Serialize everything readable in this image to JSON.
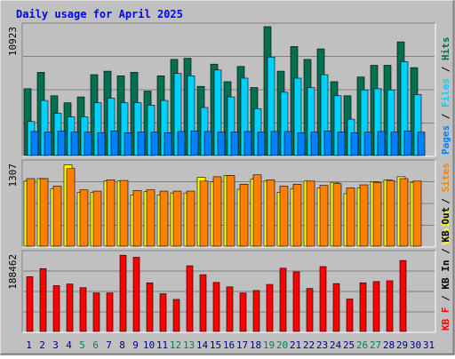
{
  "chart_data": [
    {
      "type": "bar",
      "title": "Daily usage for April 2025",
      "categories": [
        "1",
        "2",
        "3",
        "4",
        "5",
        "6",
        "7",
        "8",
        "9",
        "10",
        "11",
        "12",
        "13",
        "14",
        "15",
        "16",
        "17",
        "18",
        "19",
        "20",
        "21",
        "22",
        "23",
        "24",
        "25",
        "26",
        "27",
        "28",
        "29",
        "30",
        "31"
      ],
      "weekend_days": [
        "5",
        "6",
        "12",
        "13",
        "19",
        "20",
        "26",
        "27"
      ],
      "ylabel_max": "10923",
      "ymax": 10923,
      "legend": [
        "Pages",
        "Files",
        "Hits"
      ],
      "series": [
        {
          "name": "Hits",
          "values": [
            5700,
            7100,
            5100,
            4500,
            5000,
            6900,
            7200,
            6800,
            7100,
            5500,
            6800,
            8200,
            8300,
            5900,
            7800,
            6300,
            7600,
            5800,
            11000,
            7200,
            9300,
            8200,
            9100,
            6300,
            5100,
            6700,
            7700,
            7700,
            9700,
            7500,
            null
          ]
        },
        {
          "name": "Files",
          "values": [
            2900,
            4700,
            3600,
            3300,
            3300,
            4500,
            4900,
            4500,
            4500,
            4300,
            4700,
            7000,
            6800,
            4100,
            7300,
            5000,
            6600,
            4000,
            8400,
            5400,
            6600,
            5800,
            6900,
            5100,
            3100,
            5600,
            5700,
            5600,
            8000,
            5200,
            null
          ]
        },
        {
          "name": "Pages",
          "values": [
            2050,
            2000,
            2100,
            2000,
            2000,
            1950,
            2100,
            1950,
            2000,
            2000,
            1950,
            2050,
            2100,
            2050,
            2000,
            2000,
            2050,
            2000,
            2050,
            2050,
            1950,
            2000,
            2100,
            2000,
            1950,
            2000,
            2050,
            2000,
            2100,
            2000,
            null
          ]
        }
      ],
      "colors": {
        "Hits": "#007050",
        "Files": "#00D0FF",
        "Pages": "#0080FF"
      }
    },
    {
      "type": "bar",
      "categories": [
        "1",
        "2",
        "3",
        "4",
        "5",
        "6",
        "7",
        "8",
        "9",
        "10",
        "11",
        "12",
        "13",
        "14",
        "15",
        "16",
        "17",
        "18",
        "19",
        "20",
        "21",
        "22",
        "23",
        "24",
        "25",
        "26",
        "27",
        "28",
        "29",
        "30",
        "31"
      ],
      "ylabel_max": "1307",
      "ymax": 1307,
      "legend": [
        "Visits",
        "Sites"
      ],
      "series": [
        {
          "name": "Visits",
          "values": [
            1040,
            1080,
            920,
            1300,
            860,
            860,
            1040,
            1040,
            820,
            870,
            820,
            850,
            850,
            1100,
            1030,
            1130,
            910,
            1070,
            1040,
            860,
            920,
            1040,
            930,
            1020,
            840,
            930,
            1030,
            1060,
            1110,
            1020,
            null
          ]
        },
        {
          "name": "Sites",
          "values": [
            1080,
            1080,
            960,
            1240,
            900,
            880,
            1060,
            1050,
            890,
            900,
            880,
            880,
            880,
            1040,
            1110,
            1130,
            990,
            1140,
            1060,
            960,
            990,
            1040,
            970,
            1000,
            930,
            980,
            1020,
            1050,
            1080,
            1040,
            null
          ]
        }
      ],
      "colors": {
        "Visits": "#FFFF00",
        "Sites": "#FF8000"
      }
    },
    {
      "type": "bar",
      "categories": [
        "1",
        "2",
        "3",
        "4",
        "5",
        "6",
        "7",
        "8",
        "9",
        "10",
        "11",
        "12",
        "13",
        "14",
        "15",
        "16",
        "17",
        "18",
        "19",
        "20",
        "21",
        "22",
        "23",
        "24",
        "25",
        "26",
        "27",
        "28",
        "29",
        "30",
        "31"
      ],
      "ylabel_max": "188462",
      "ymax": 188462,
      "legend": [
        "KB F",
        "KB In",
        "KB Out"
      ],
      "series": [
        {
          "name": "KB F",
          "values": [
            135000,
            155000,
            113000,
            117000,
            108000,
            95000,
            95000,
            188000,
            183000,
            120000,
            93000,
            79000,
            162000,
            140000,
            121000,
            110000,
            95000,
            101000,
            116000,
            156000,
            147000,
            106000,
            160000,
            118000,
            80000,
            120000,
            123000,
            125000,
            175000,
            null,
            null
          ]
        }
      ],
      "colors": {
        "KB F": "#FF0000"
      }
    }
  ],
  "colors": {
    "background": "#C0C0C0",
    "title": "#0000FF",
    "weekend_label": "#00805C",
    "weekday_label": "#000080"
  }
}
